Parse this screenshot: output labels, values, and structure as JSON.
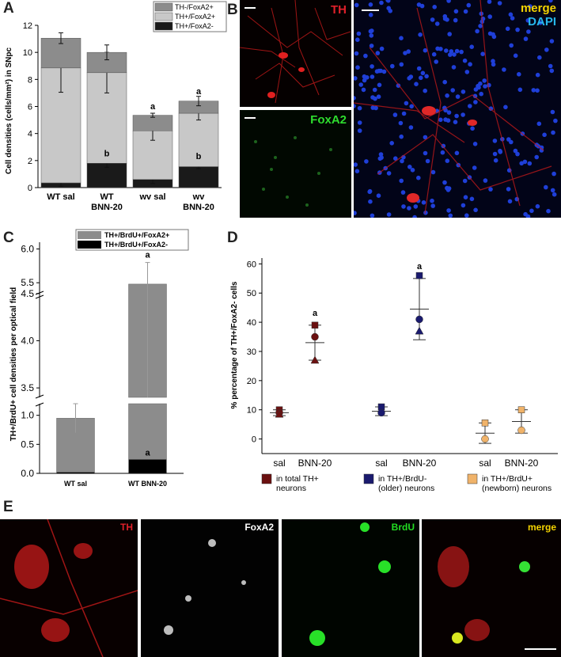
{
  "panels": {
    "A": "A",
    "B": "B",
    "C": "C",
    "D": "D",
    "E": "E"
  },
  "chart_a": {
    "type": "bar",
    "stacked": true,
    "ylabel": "Cell densities (cells/mm²) in SNpc",
    "ylim": [
      0,
      12
    ],
    "yticks": [
      "0",
      "2",
      "4",
      "6",
      "8",
      "10",
      "12"
    ],
    "categories": [
      "WT sal",
      "WT BNN-20",
      "wv sal",
      "wv BNN-20"
    ],
    "cat_lines": [
      [
        "WT sal"
      ],
      [
        "WT",
        "BNN-20"
      ],
      [
        "wv sal"
      ],
      [
        "wv",
        "BNN-20"
      ]
    ],
    "series": [
      {
        "name": "TH+/FoxA2-",
        "color": "#1a1a1a",
        "values": [
          0.35,
          1.8,
          0.6,
          1.55
        ],
        "errors": [
          0.25,
          0.3,
          0.3,
          0.15
        ]
      },
      {
        "name": "TH+/FoxA2+",
        "color": "#c8c8c8",
        "values": [
          8.5,
          6.7,
          3.6,
          3.95
        ],
        "errors": [
          1.8,
          1.5,
          0.7,
          0.5
        ]
      },
      {
        "name": "TH-/FoxA2+",
        "color": "#8c8c8c",
        "values": [
          2.2,
          1.5,
          1.15,
          0.9
        ],
        "errors": [
          0.4,
          0.55,
          0.15,
          0.35
        ]
      }
    ],
    "legend": [
      "TH-/FoxA2+",
      "TH+/FoxA2+",
      "TH+/FoxA2-"
    ],
    "annotations": [
      {
        "cat": 1,
        "y": 2.3,
        "text": "b"
      },
      {
        "cat": 2,
        "y": 5.8,
        "text": "a"
      },
      {
        "cat": 3,
        "y": 2.1,
        "text": "b"
      },
      {
        "cat": 3,
        "y": 6.9,
        "text": "a"
      }
    ]
  },
  "chart_c": {
    "type": "bar",
    "stacked": true,
    "broken_axis": true,
    "ylabel": "TH+/BrdU+ cell densities per optical field",
    "yticks_low": [
      "0.0",
      "0.5",
      "1.0"
    ],
    "yticks_high": [
      "3.5",
      "4.0",
      "4.5",
      "5.5",
      "6.0"
    ],
    "categories": [
      "WT sal",
      "WT BNN-20"
    ],
    "series": [
      {
        "name": "TH+/BrdU+/FoxA2-",
        "color": "#000000",
        "values": [
          0.02,
          0.24
        ]
      },
      {
        "name": "TH+/BrdU+/FoxA2+",
        "color": "#8c8c8c",
        "values": [
          0.93,
          4.36
        ]
      }
    ],
    "totals": [
      0.95,
      4.6
    ],
    "errors": [
      0.25,
      1.2
    ],
    "legend": [
      "TH+/BrdU+/FoxA2+",
      "TH+/BrdU+/FoxA2-"
    ],
    "annotations": [
      {
        "cat": 1,
        "text": "a",
        "where": "top"
      },
      {
        "cat": 1,
        "text": "a",
        "where": "inner"
      }
    ]
  },
  "chart_d": {
    "type": "scatter",
    "ylabel": "% percentage of TH+/FoxA2- cells",
    "ylim": [
      -5,
      62
    ],
    "yticks": [
      "0",
      "10",
      "20",
      "30",
      "40",
      "50",
      "60"
    ],
    "groups": [
      {
        "legend": [
          "in total TH+",
          "neurons"
        ],
        "color": "#6b1010",
        "sal": {
          "label": "sal",
          "points": [
            10,
            9,
            8.5
          ],
          "mean": 9,
          "sd": 1
        },
        "bnn": {
          "label": "BNN-20",
          "points": [
            39,
            35,
            27
          ],
          "mean": 33,
          "sd": 6
        }
      },
      {
        "legend": [
          "in TH+/BrdU-",
          "(older) neurons"
        ],
        "color": "#1a1a6e",
        "sal": {
          "label": "sal",
          "points": [
            11,
            9
          ],
          "mean": 9.5,
          "sd": 1.5
        },
        "bnn": {
          "label": "BNN-20",
          "points": [
            56,
            41,
            37
          ],
          "mean": 44.5,
          "sd": 10.5
        }
      },
      {
        "legend": [
          "in TH+/BrdU+",
          "(newborn) neurons"
        ],
        "color": "#f0b36a",
        "sal": {
          "label": "sal",
          "points": [
            5.5,
            0
          ],
          "mean": 2,
          "sd": 3.5
        },
        "bnn": {
          "label": "BNN-20",
          "points": [
            10,
            3
          ],
          "mean": 6,
          "sd": 4
        }
      }
    ],
    "annotations": [
      {
        "group": 0,
        "text": "a"
      },
      {
        "group": 1,
        "text": "a"
      }
    ]
  },
  "panel_b": {
    "th_label": "TH",
    "foxa2_label": "FoxA2",
    "merge_label": "merge",
    "dapi_label": "DAPI"
  },
  "panel_e": {
    "labels": [
      "TH",
      "FoxA2",
      "BrdU",
      "merge"
    ],
    "label_colors": [
      "#e0202a",
      "#ffffff",
      "#22dd22",
      "#f5d400"
    ]
  }
}
